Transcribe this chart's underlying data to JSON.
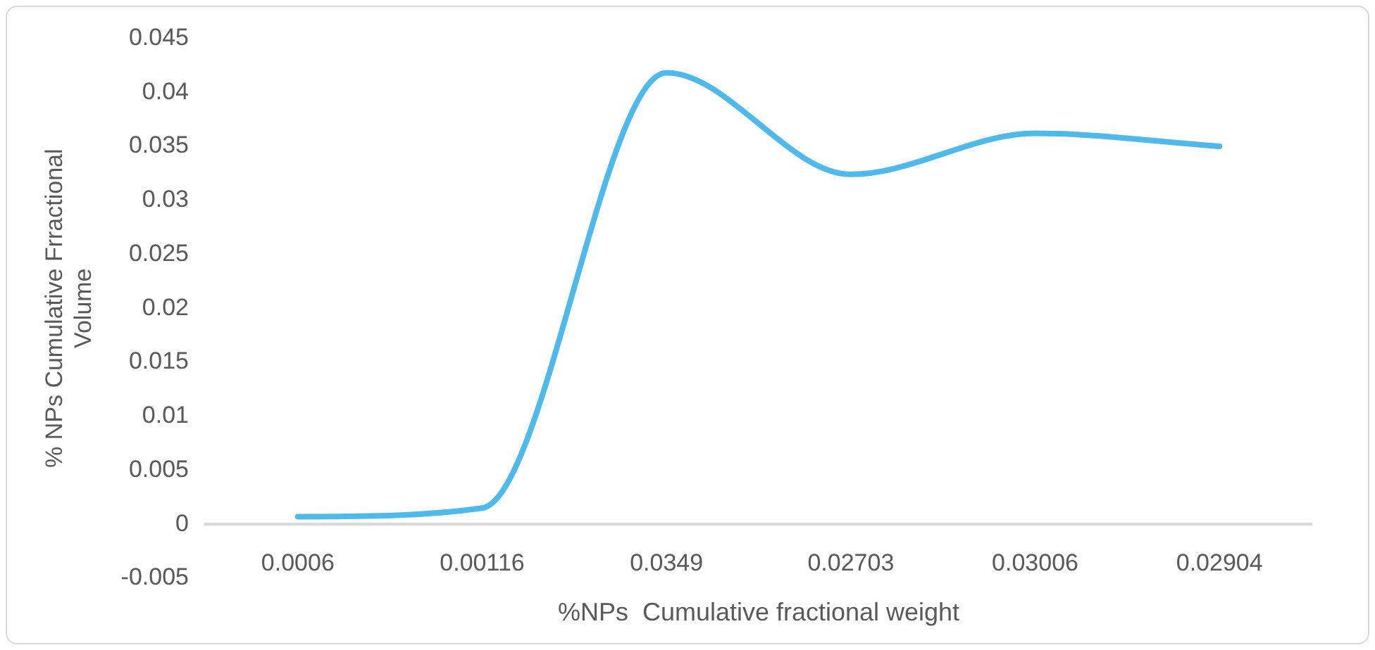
{
  "chart_data": {
    "type": "line",
    "xlabel": "%NPs  Cumulative fractional weight",
    "ylabel": "% NPs Cumulative Frractional Volume",
    "categories": [
      "0.0006",
      "0.00116",
      "0.0349",
      "0.02703",
      "0.03006",
      "0.02904"
    ],
    "series": [
      {
        "color": "#4fb9eb",
        "values": [
          0.0007,
          0.0015,
          0.0418,
          0.0324,
          0.0362,
          0.035
        ]
      }
    ],
    "ylim": [
      -0.005,
      0.045
    ],
    "yticks": [
      -0.005,
      0,
      0.005,
      0.01,
      0.015,
      0.02,
      0.025,
      0.03,
      0.035,
      0.04,
      0.045
    ],
    "grid": false,
    "legend": false,
    "marker": "none",
    "line_style": "solid"
  }
}
